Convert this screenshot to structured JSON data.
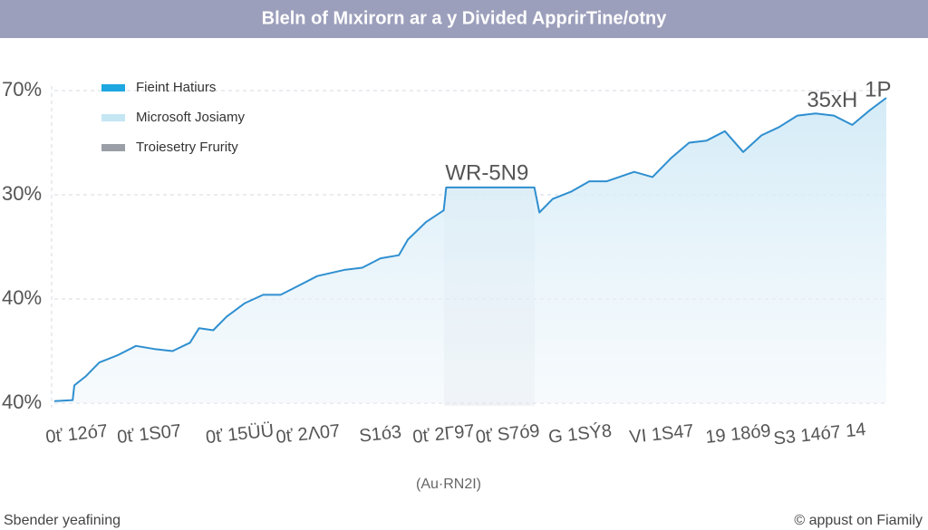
{
  "chart_data": {
    "type": "line",
    "title": "Bleln of Mıxirorn ar a y Divided AppɾirTine/otny",
    "x_label": "(Au·RN2I)",
    "footer_left": "Sbender yeafining",
    "footer_right": "© appust on Fiamily",
    "annotations": [
      {
        "text": "WR-5N9",
        "x": 52,
        "y": 2.2
      },
      {
        "text": "35xH",
        "x": 93.5,
        "y": 2.9
      },
      {
        "text": "1P",
        "x": 99,
        "y": 3.0
      }
    ],
    "legend": [
      {
        "label": "Fieint Hatiurs",
        "color": "#1ea7e0"
      },
      {
        "label": "Microsoft Josiamy",
        "color": "#c5e6f3"
      },
      {
        "label": "Troiesetry Frurity",
        "color": "#9a9ea6"
      }
    ],
    "x": [
      0,
      2.2,
      2.4,
      3.8,
      5.4,
      7.6,
      9.8,
      12.0,
      14.2,
      16.3,
      17.4,
      19.1,
      20.7,
      22.9,
      25.1,
      27.2,
      29.4,
      31.6,
      34.9,
      37.0,
      39.2,
      41.4,
      42.5,
      44.7,
      46.8,
      47.1,
      57.7,
      58.3,
      59.9,
      62.1,
      64.3,
      66.4,
      69.7,
      71.9,
      74.1,
      76.3,
      78.4,
      80.6,
      82.8,
      85.0,
      87.1,
      89.3,
      91.5,
      93.7,
      95.9,
      98.0,
      100
    ],
    "series": [
      {
        "name": "Fieint Hatiurs",
        "color": "#2f8fd0",
        "values": [
          0.02,
          0.03,
          0.17,
          0.26,
          0.39,
          0.46,
          0.55,
          0.52,
          0.5,
          0.58,
          0.72,
          0.7,
          0.83,
          0.96,
          1.04,
          1.04,
          1.13,
          1.22,
          1.28,
          1.3,
          1.39,
          1.42,
          1.57,
          1.74,
          1.85,
          2.07,
          2.07,
          1.83,
          1.96,
          2.03,
          2.13,
          2.13,
          2.22,
          2.17,
          2.35,
          2.5,
          2.52,
          2.61,
          2.41,
          2.57,
          2.65,
          2.76,
          2.78,
          2.76,
          2.67,
          2.81,
          2.93
        ]
      }
    ],
    "xlim": [
      0,
      100
    ],
    "xticks": [
      {
        "value": 2.7,
        "label": "0ť 12ó7"
      },
      {
        "value": 11.4,
        "label": "0ť 1S07"
      },
      {
        "value": 22.3,
        "label": "0ť 15ÜÜ"
      },
      {
        "value": 30.5,
        "label": "0ť 2Λ07"
      },
      {
        "value": 39.2,
        "label": "S1ó3"
      },
      {
        "value": 46.8,
        "label": "0ť 2Г97"
      },
      {
        "value": 54.5,
        "label": "0ť S7ó9"
      },
      {
        "value": 63.2,
        "label": "G 1SÝ8"
      },
      {
        "value": 73.0,
        "label": "VΙ 1S47"
      },
      {
        "value": 82.2,
        "label": "19 18ó9"
      },
      {
        "value": 92.0,
        "label": "S3 14ó7 14"
      }
    ],
    "ylim": [
      0,
      3.05
    ],
    "yticks": [
      {
        "value": 0,
        "label": "40%"
      },
      {
        "value": 1,
        "label": "40%"
      },
      {
        "value": 2,
        "label": "30%"
      },
      {
        "value": 3,
        "label": "70%"
      }
    ],
    "grid": true
  }
}
